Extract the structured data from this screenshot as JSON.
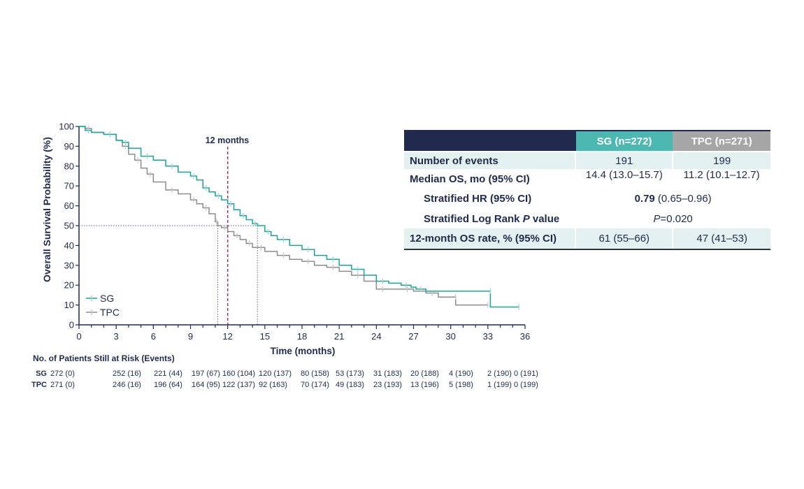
{
  "chart_data": {
    "type": "line",
    "step": true,
    "ylabel": "Overall Survival Probability (%)",
    "xlabel": "Time (months)",
    "xlim": [
      0,
      36
    ],
    "ylim": [
      0,
      100
    ],
    "xticks": [
      "0",
      "3",
      "6",
      "9",
      "12",
      "15",
      "18",
      "21",
      "24",
      "27",
      "30",
      "33",
      "36"
    ],
    "yticks": [
      "0",
      "10",
      "20",
      "30",
      "40",
      "50",
      "60",
      "70",
      "80",
      "90",
      "100"
    ],
    "annotation": "12 months",
    "annotation_x": 12,
    "median_line_y": 50,
    "legend_position": "bottom-left",
    "series": [
      {
        "name": "SG",
        "color": "#1aa39b",
        "x": [
          0,
          0.5,
          1,
          2,
          3,
          3.5,
          4,
          5,
          6,
          7,
          8,
          9,
          9.5,
          10,
          10.5,
          11,
          11.5,
          12,
          12.5,
          13,
          13.5,
          14,
          14.4,
          15,
          15.5,
          16,
          17,
          18,
          19,
          20,
          21,
          22,
          23,
          24,
          25,
          26,
          26.8,
          27.2,
          28,
          33.2,
          33.2,
          35.5
        ],
        "y": [
          100,
          98,
          97,
          96,
          93,
          92,
          89,
          85,
          83,
          80,
          77,
          75,
          73,
          69,
          67,
          65,
          63,
          61,
          58,
          55,
          53,
          51,
          50,
          47,
          45,
          43,
          40,
          38,
          35,
          33,
          30,
          28,
          25,
          22,
          21,
          20,
          19,
          18,
          17,
          17,
          9,
          9
        ]
      },
      {
        "name": "TPC",
        "color": "#8c8c8c",
        "x": [
          0,
          0.5,
          1,
          2,
          3,
          3.5,
          4,
          4.5,
          5,
          5.5,
          6,
          7,
          8,
          9,
          9.5,
          10,
          10.5,
          11,
          11.2,
          11.5,
          12,
          12.5,
          13,
          13.5,
          14,
          14.4,
          15,
          16,
          17,
          18,
          19,
          20,
          21,
          22,
          23,
          24,
          25,
          26,
          27,
          28,
          29,
          30.4,
          30.4,
          33
        ],
        "y": [
          100,
          99,
          97,
          96,
          93,
          90,
          86,
          83,
          79,
          76,
          72,
          68,
          66,
          63,
          61,
          59,
          56,
          52,
          50,
          49,
          47,
          45,
          43,
          41,
          39,
          39,
          37,
          35,
          33,
          32,
          30,
          29,
          27,
          25,
          22,
          18,
          18,
          18,
          17,
          16,
          14,
          14,
          10,
          10
        ]
      }
    ],
    "medians": {
      "SG": 14.4,
      "TPC": 11.2
    },
    "risk_table": {
      "title": "No. of Patients Still at Risk (Events)",
      "rows": [
        {
          "label": "SG",
          "values": [
            "272 (0)",
            "252 (16)",
            "221 (44)",
            "197 (67)",
            "160 (104)",
            "120 (137)",
            "80 (158)",
            "53 (173)",
            "31 (183)",
            "20 (188)",
            "4 (190)",
            "2 (190)",
            "0 (191)"
          ]
        },
        {
          "label": "TPC",
          "values": [
            "271 (0)",
            "246 (16)",
            "196 (64)",
            "164 (95)",
            "122 (137)",
            "92 (163)",
            "70 (174)",
            "49 (183)",
            "23 (193)",
            "13 (196)",
            "5 (198)",
            "1 (199)",
            "0 (199)"
          ]
        }
      ]
    }
  },
  "summary_table": {
    "headers": {
      "sg": "SG (n=272)",
      "tpc": "TPC (n=271)"
    },
    "events": {
      "label": "Number of events",
      "sg": "191",
      "tpc": "199"
    },
    "median": {
      "label": "Median OS, mo (95% CI)",
      "sg": "14.4 (13.0–15.7)",
      "tpc": "11.2 (10.1–12.7)"
    },
    "hr": {
      "label": "Stratified HR (95% CI)",
      "value_bold": "0.79",
      "value_rest": " (0.65–0.96)"
    },
    "pvalue": {
      "label_pre": "Stratified Log Rank ",
      "label_p": "P",
      "label_post": " value",
      "value_p": "P",
      "value_rest": "=0.020"
    },
    "rate12": {
      "label": "12-month OS rate, % (95% CI)",
      "sg": "61 (55–66)",
      "tpc": "47 (41–53)"
    }
  },
  "colors": {
    "navy": "#1f2a4e",
    "teal": "#4db8b2",
    "gray": "#a6a6a6",
    "reference_line": "#a0305a"
  }
}
